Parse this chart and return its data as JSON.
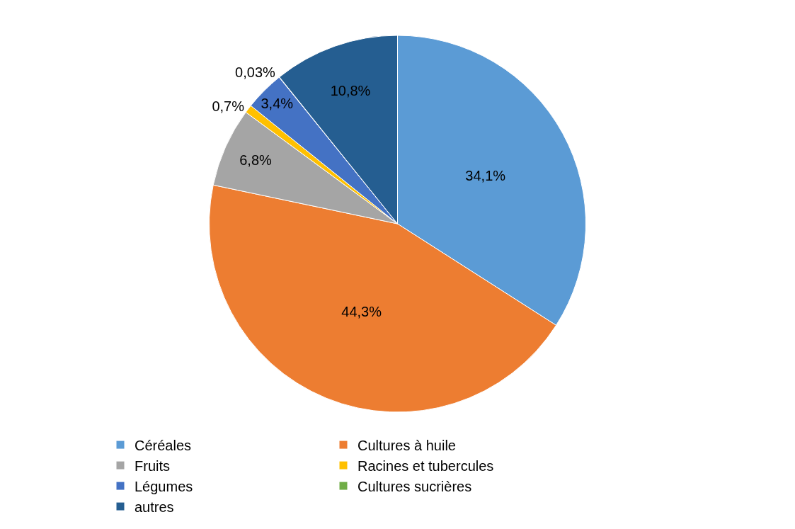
{
  "chart_data": {
    "type": "pie",
    "categories": [
      "Céréales",
      "Cultures à huile",
      "Fruits",
      "Racines et tubercules",
      "Légumes",
      "Cultures sucrières",
      "autres"
    ],
    "values": [
      34.1,
      44.3,
      6.8,
      0.7,
      3.4,
      0.03,
      10.8
    ],
    "value_labels": [
      "34,1%",
      "44,3%",
      "6,8%",
      "0,7%",
      "3,4%",
      "0,03%",
      "10,8%"
    ],
    "colors": [
      "#5b9bd5",
      "#ed7d31",
      "#a5a5a5",
      "#ffc000",
      "#4472c4",
      "#70ad47",
      "#255e91"
    ],
    "legend": "bottom"
  }
}
